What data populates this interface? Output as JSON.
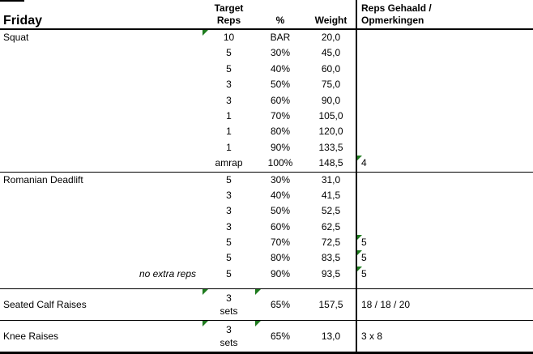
{
  "title": "Friday",
  "columns": {
    "target_line1": "Target",
    "target_line2": "Reps",
    "pct": "%",
    "weight": "Weight",
    "notes_line1": "Reps Gehaald /",
    "notes_line2": "Opmerkingen"
  },
  "colors": {
    "triangle_indicator": "#1e7b1e",
    "border": "#000000",
    "background": "#ffffff",
    "text": "#000000"
  },
  "sections": [
    {
      "exercise": "Squat",
      "rows": [
        {
          "target": "10",
          "pct": "BAR",
          "weight": "20,0",
          "note": "",
          "tri_target": true
        },
        {
          "target": "5",
          "pct": "30%",
          "weight": "45,0",
          "note": ""
        },
        {
          "target": "5",
          "pct": "40%",
          "weight": "60,0",
          "note": ""
        },
        {
          "target": "3",
          "pct": "50%",
          "weight": "75,0",
          "note": ""
        },
        {
          "target": "3",
          "pct": "60%",
          "weight": "90,0",
          "note": ""
        },
        {
          "target": "1",
          "pct": "70%",
          "weight": "105,0",
          "note": ""
        },
        {
          "target": "1",
          "pct": "80%",
          "weight": "120,0",
          "note": ""
        },
        {
          "target": "1",
          "pct": "90%",
          "weight": "133,5",
          "note": ""
        },
        {
          "target": "amrap",
          "pct": "100%",
          "weight": "148,5",
          "note": "4",
          "tri_note": true
        }
      ]
    },
    {
      "exercise": "Romanian Deadlift",
      "rows": [
        {
          "target": "5",
          "pct": "30%",
          "weight": "31,0",
          "note": ""
        },
        {
          "target": "3",
          "pct": "40%",
          "weight": "41,5",
          "note": ""
        },
        {
          "target": "3",
          "pct": "50%",
          "weight": "52,5",
          "note": ""
        },
        {
          "target": "3",
          "pct": "60%",
          "weight": "62,5",
          "note": ""
        },
        {
          "target": "5",
          "pct": "70%",
          "weight": "72,5",
          "note": "5",
          "tri_note": true
        },
        {
          "target": "5",
          "pct": "80%",
          "weight": "83,5",
          "note": "5",
          "tri_note": true
        },
        {
          "target": "5",
          "pct": "90%",
          "weight": "93,5",
          "note": "5",
          "tri_note": true,
          "name_note": "no extra reps"
        }
      ]
    },
    {
      "exercise": "Seated Calf Raises",
      "rows": [
        {
          "target_line1": "3",
          "target_line2": "sets",
          "pct": "65%",
          "weight": "157,5",
          "note": "18 / 18 / 20",
          "tri_target": true,
          "tri_pct": true
        }
      ]
    },
    {
      "exercise": "Knee Raises",
      "rows": [
        {
          "target_line1": "3",
          "target_line2": "sets",
          "pct": "65%",
          "weight": "13,0",
          "note": "3 x 8",
          "tri_target": true,
          "tri_pct": true
        }
      ]
    }
  ]
}
